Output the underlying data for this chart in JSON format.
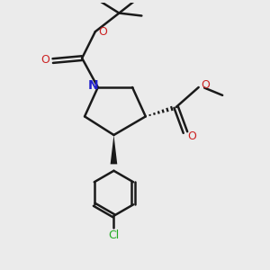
{
  "background_color": "#ebebeb",
  "bond_color": "#1a1a1a",
  "N_color": "#2222cc",
  "O_color": "#cc2222",
  "Cl_color": "#22aa22",
  "line_width": 1.8,
  "figsize": [
    3.0,
    3.0
  ],
  "dpi": 100,
  "xlim": [
    0,
    10
  ],
  "ylim": [
    0,
    10
  ]
}
